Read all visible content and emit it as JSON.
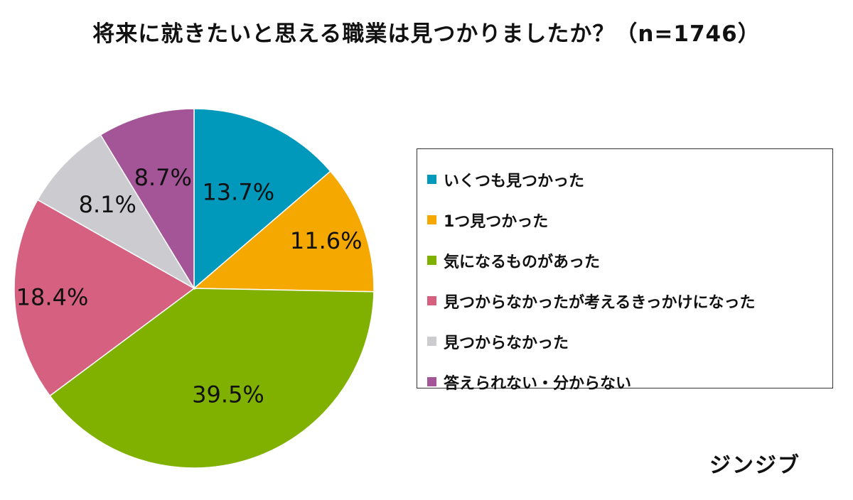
{
  "chart_data": {
    "type": "pie",
    "title": "将来に就きたいと思える職業は見つかりましたか？（n=1746）",
    "legend_position": "right",
    "slices": [
      {
        "label": "いくつも見つかった",
        "value": 13.7,
        "value_label": "13.7%",
        "color": "#0099bb"
      },
      {
        "label": "1つ見つかった",
        "value": 11.6,
        "value_label": "11.6%",
        "color": "#f5a800"
      },
      {
        "label": "気になるものがあった",
        "value": 39.5,
        "value_label": "39.5%",
        "color": "#80b000"
      },
      {
        "label": "見つからなかったが考えるきっかけになった",
        "value": 18.4,
        "value_label": "18.4%",
        "color": "#d5607f"
      },
      {
        "label": "見つからなかった",
        "value": 8.1,
        "value_label": "8.1%",
        "color": "#cccbd0"
      },
      {
        "label": "答えられない・分からない",
        "value": 8.7,
        "value_label": "8.7%",
        "color": "#a45597"
      }
    ]
  },
  "brand": "ジンジブ"
}
